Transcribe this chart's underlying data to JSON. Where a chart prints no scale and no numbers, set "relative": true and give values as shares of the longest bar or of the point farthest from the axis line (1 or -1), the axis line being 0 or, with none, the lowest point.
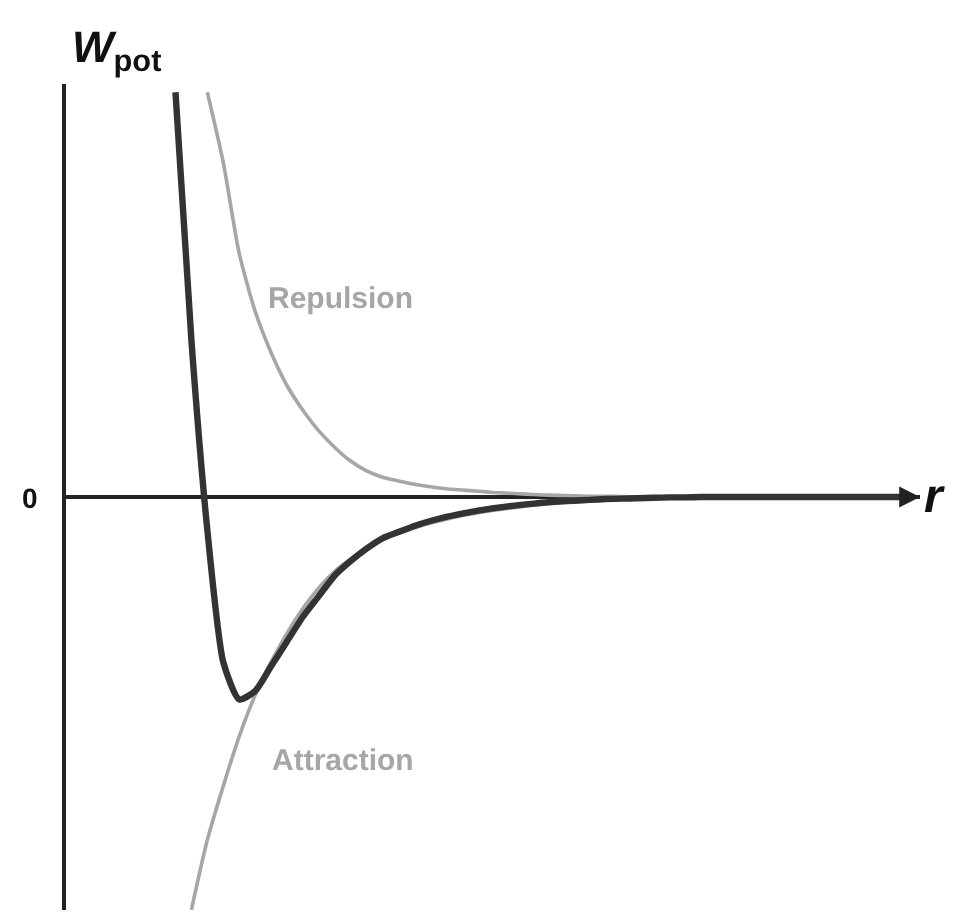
{
  "chart_data": {
    "type": "line",
    "relative": true,
    "xlabel": "r",
    "ylabel": "W$_{pot}$",
    "annotations": [
      "0"
    ],
    "categories": [
      null,
      null,
      null,
      null,
      null,
      null,
      null,
      null,
      null,
      null,
      null,
      null,
      null,
      null,
      null,
      null,
      null,
      null,
      null,
      null,
      null,
      null,
      null,
      null,
      null,
      null,
      null,
      null,
      null,
      null,
      null,
      null,
      null,
      null,
      null,
      null,
      null,
      null,
      null,
      null,
      null,
      null,
      null,
      null,
      null,
      null,
      null,
      null,
      null,
      null,
      null,
      null,
      null,
      null
    ],
    "series": [
      {
        "name": "Repulsion",
        "color": "#a6a6a6",
        "values": [
          null,
          null,
          null,
          null,
          null,
          null,
          null,
          null,
          null,
          0.98,
          0.81,
          0.59,
          0.45,
          0.35,
          0.27,
          0.21,
          0.16,
          0.12,
          0.087,
          0.063,
          0.048,
          0.039,
          0.031,
          0.025,
          0.02,
          0.017,
          0.014,
          0.011,
          0.009,
          0.007,
          0.005,
          0.004,
          0.003,
          0.002,
          0.002,
          0.001,
          0,
          0,
          0,
          0,
          0,
          0,
          0,
          0,
          0,
          0,
          0,
          0,
          0,
          0,
          0,
          0,
          0,
          0
        ]
      },
      {
        "name": "Attraction",
        "color": "#a6a6a6",
        "values": [
          null,
          null,
          null,
          null,
          null,
          null,
          null,
          null,
          -1.0,
          -0.83,
          -0.7,
          -0.58,
          -0.48,
          -0.4,
          -0.33,
          -0.27,
          -0.22,
          -0.18,
          -0.15,
          -0.125,
          -0.1,
          -0.087,
          -0.075,
          -0.063,
          -0.054,
          -0.045,
          -0.038,
          -0.032,
          -0.027,
          -0.022,
          -0.018,
          -0.015,
          -0.012,
          -0.01,
          -0.008,
          -0.006,
          -0.005,
          -0.004,
          -0.003,
          -0.002,
          -0.002,
          0,
          0,
          0,
          0,
          0,
          0,
          0,
          0,
          0,
          0,
          0,
          0,
          0
        ]
      },
      {
        "color": "#333333",
        "values": [
          null,
          null,
          null,
          null,
          null,
          null,
          null,
          0.98,
          0.38,
          -0.08,
          -0.4,
          -0.49,
          -0.47,
          -0.41,
          -0.35,
          -0.29,
          -0.24,
          -0.19,
          -0.155,
          -0.125,
          -0.1,
          -0.085,
          -0.07,
          -0.058,
          -0.048,
          -0.04,
          -0.033,
          -0.027,
          -0.022,
          -0.018,
          -0.014,
          -0.011,
          -0.009,
          -0.007,
          -0.005,
          -0.004,
          -0.003,
          -0.002,
          -0.001,
          -0.001,
          0,
          0,
          0,
          0,
          0,
          0,
          0,
          0,
          0,
          0,
          0,
          0,
          0,
          0
        ]
      }
    ]
  }
}
